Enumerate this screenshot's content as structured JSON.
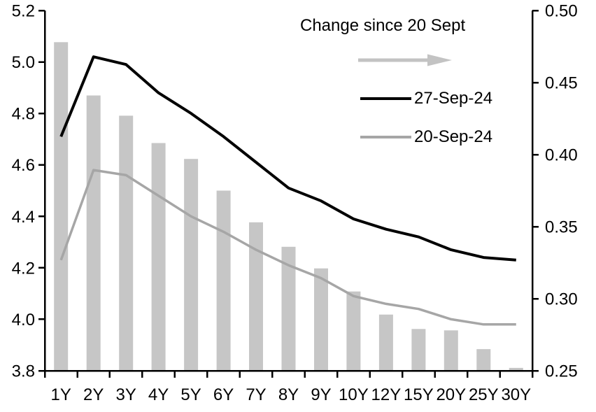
{
  "chart_data": {
    "type": "combo",
    "categories": [
      "1Y",
      "2Y",
      "3Y",
      "4Y",
      "5Y",
      "6Y",
      "7Y",
      "8Y",
      "9Y",
      "10Y",
      "12Y",
      "15Y",
      "20Y",
      "25Y",
      "30Y"
    ],
    "series": [
      {
        "name": "Change since 20 Sept",
        "type": "bar",
        "axis": "right",
        "color": "#c6c6c6",
        "values": [
          0.478,
          0.441,
          0.427,
          0.408,
          0.397,
          0.375,
          0.353,
          0.336,
          0.321,
          0.305,
          0.289,
          0.279,
          0.278,
          0.265,
          0.252
        ]
      },
      {
        "name": "27-Sep-24",
        "type": "line",
        "axis": "left",
        "color": "#000000",
        "values": [
          4.71,
          5.02,
          4.99,
          4.88,
          4.8,
          4.71,
          4.61,
          4.51,
          4.46,
          4.39,
          4.35,
          4.32,
          4.27,
          4.24,
          4.23
        ]
      },
      {
        "name": "20-Sep-24",
        "type": "line",
        "axis": "left",
        "color": "#a6a6a6",
        "values": [
          4.23,
          4.58,
          4.56,
          4.48,
          4.4,
          4.34,
          4.27,
          4.21,
          4.16,
          4.09,
          4.06,
          4.04,
          4.0,
          3.98,
          3.98
        ]
      }
    ],
    "left_axis": {
      "min": 3.8,
      "max": 5.2,
      "step": 0.2,
      "ticks": [
        "5.2",
        "5.0",
        "4.8",
        "4.6",
        "4.4",
        "4.2",
        "4.0",
        "3.8"
      ]
    },
    "right_axis": {
      "min": 0.25,
      "max": 0.5,
      "step": 0.05,
      "ticks": [
        "0.50",
        "0.45",
        "0.40",
        "0.35",
        "0.30",
        "0.25"
      ]
    },
    "grid": false,
    "legend_position": "top-right-inside",
    "legend": {
      "title": "Change since 20 Sept",
      "arrow_icon": "right-arrow",
      "arrow_color": "#c3c3c3",
      "items": [
        {
          "label": "27-Sep-24",
          "color": "#000000"
        },
        {
          "label": "20-Sep-24",
          "color": "#a6a6a6"
        }
      ]
    },
    "axis_color": "#000000"
  }
}
